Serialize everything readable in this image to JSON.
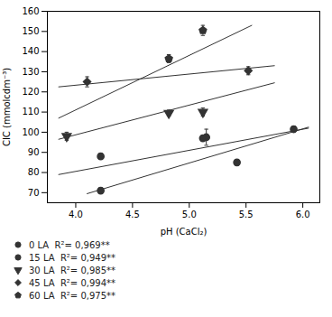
{
  "chart_data": {
    "type": "scatter",
    "xlabel": "pH (CaCl₂)",
    "ylabel": "CIC (mmolcdm⁻³)",
    "xlim": [
      3.75,
      6.15
    ],
    "ylim": [
      65,
      160
    ],
    "xticks": [
      {
        "value": 4,
        "label": "4.0"
      },
      4.5,
      {
        "value": 5,
        "label": "5.0"
      },
      5.5,
      {
        "value": 6,
        "label": "6.0"
      }
    ],
    "yticks": [
      70,
      80,
      90,
      100,
      110,
      120,
      130,
      140,
      150,
      160
    ],
    "grid": false,
    "legend": "below",
    "series": [
      {
        "name": "0 LA  R²= 0,969**",
        "marker": "circle",
        "color": "#333333",
        "x": [
          4.22,
          5.15,
          5.42
        ],
        "values": [
          88.0,
          97.5,
          85.0
        ],
        "errors": [
          1.5,
          4.0,
          1.5
        ],
        "line_x": [
          3.85,
          6.05
        ],
        "line_values": [
          79.0,
          102.0
        ]
      },
      {
        "name": "15 LA  R²= 0,949**",
        "marker": "circle",
        "color": "#333333",
        "x": [
          4.22,
          5.12,
          5.92
        ],
        "values": [
          71.0,
          97.0,
          101.5
        ],
        "errors": [
          1.5,
          1.5,
          1.5
        ],
        "line_x": [
          4.1,
          6.05
        ],
        "line_values": [
          69.5,
          102.5
        ]
      },
      {
        "name": "30 LA  R²= 0,985**",
        "marker": "triangle-down",
        "color": "#333333",
        "x": [
          3.92,
          4.82,
          5.12
        ],
        "values": [
          98.0,
          109.5,
          110.0
        ],
        "errors": [
          2.0,
          1.5,
          2.0
        ],
        "line_x": [
          3.85,
          5.75
        ],
        "line_values": [
          96.5,
          124.5
        ]
      },
      {
        "name": "45 LA  R²= 0,994**",
        "marker": "diamond",
        "color": "#333333",
        "x": [
          4.1,
          5.52
        ],
        "values": [
          125.0,
          130.5
        ],
        "errors": [
          2.5,
          2.0
        ],
        "line_x": [
          3.85,
          5.75
        ],
        "line_values": [
          122.5,
          133.0
        ]
      },
      {
        "name": "60 LA  R²= 0,975**",
        "marker": "pentagon",
        "color": "#333333",
        "x": [
          4.82,
          5.12
        ],
        "values": [
          136.5,
          150.5
        ],
        "errors": [
          2.0,
          2.5
        ],
        "line_x": [
          3.85,
          5.55
        ],
        "line_values": [
          107.0,
          153.0
        ]
      }
    ]
  }
}
